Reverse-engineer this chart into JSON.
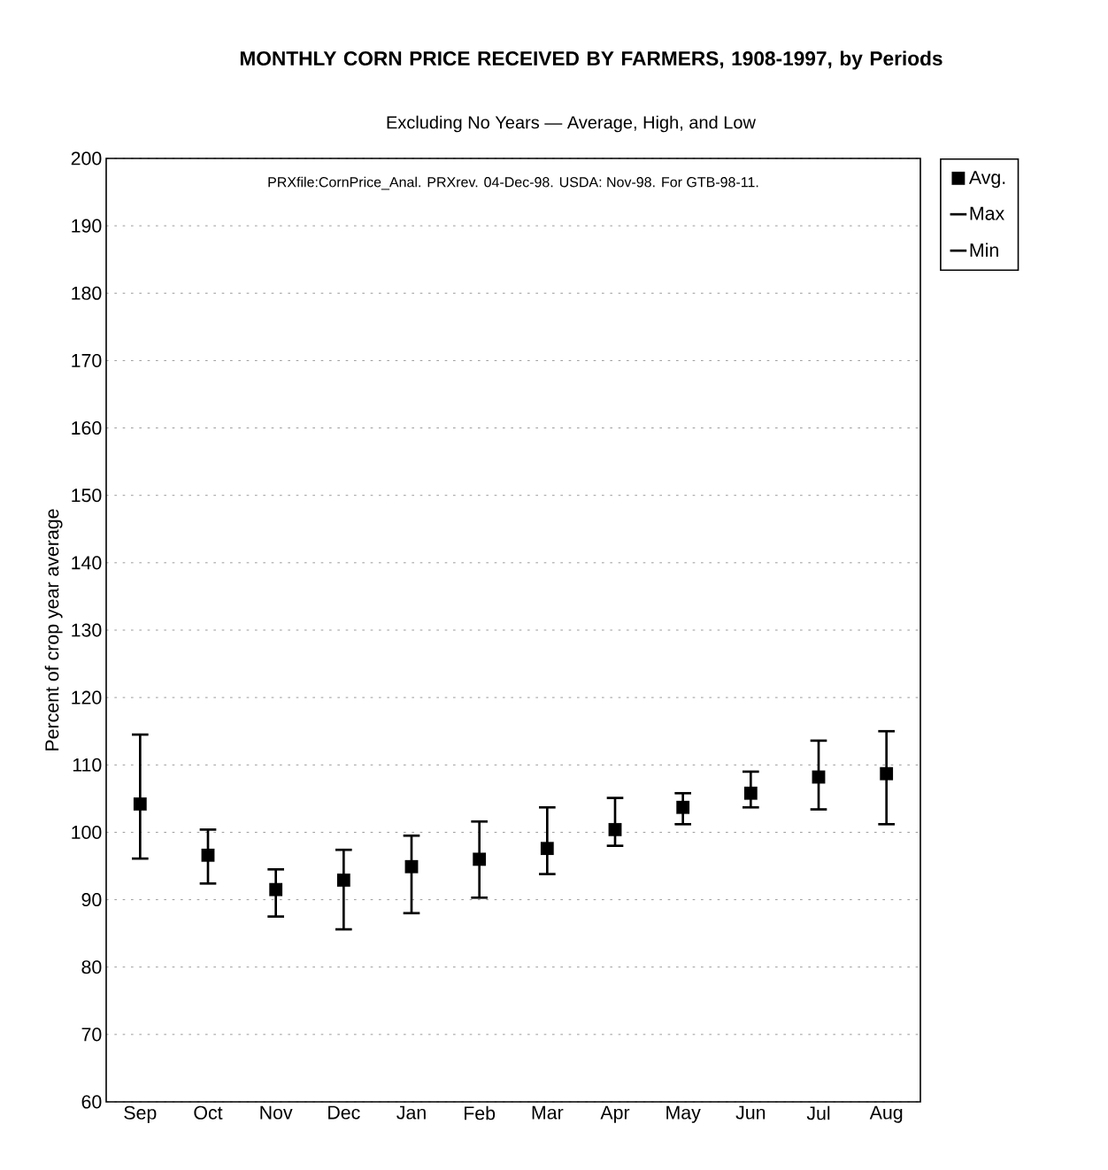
{
  "chart_data": {
    "type": "scatter",
    "title": "MONTHLY CORN PRICE RECEIVED BY FARMERS, 1908-1997, by Periods",
    "subtitle": "Excluding No Years — Average, High, and Low",
    "ylabel": "Percent of crop year average",
    "annotations": [
      "PRXfile:CornPrice_Anal.  PRXrev. 04-Dec-98.  USDA: Nov-98.  For  GTB-98-11.",
      "Max",
      "Min"
    ],
    "categories": [
      "Sep",
      "Oct",
      "Nov",
      "Dec",
      "Jan",
      "Feb",
      "Mar",
      "Apr",
      "May",
      "Jun",
      "Jul",
      "Aug"
    ],
    "series": [
      {
        "name": "Avg.",
        "color": "#000000",
        "marker": "square",
        "values": [
          104.2,
          96.6,
          91.5,
          92.9,
          94.9,
          96.0,
          97.6,
          100.4,
          103.7,
          105.8,
          108.2,
          108.7
        ],
        "errors": [
          [
            96.1,
            114.5
          ],
          [
            92.4,
            100.4
          ],
          [
            87.5,
            94.5
          ],
          [
            85.6,
            97.4
          ],
          [
            88.0,
            99.5
          ],
          [
            90.3,
            101.6
          ],
          [
            93.8,
            103.7
          ],
          [
            98.0,
            105.1
          ],
          [
            101.2,
            105.8
          ],
          [
            103.7,
            109.0
          ],
          [
            103.4,
            113.6
          ],
          [
            101.2,
            115.0
          ]
        ]
      }
    ],
    "ylim": [
      60,
      200
    ],
    "yticks": [
      60,
      70,
      80,
      90,
      100,
      110,
      120,
      130,
      140,
      150,
      160,
      170,
      180,
      190,
      200
    ],
    "grid": "y",
    "legend": "top right"
  }
}
